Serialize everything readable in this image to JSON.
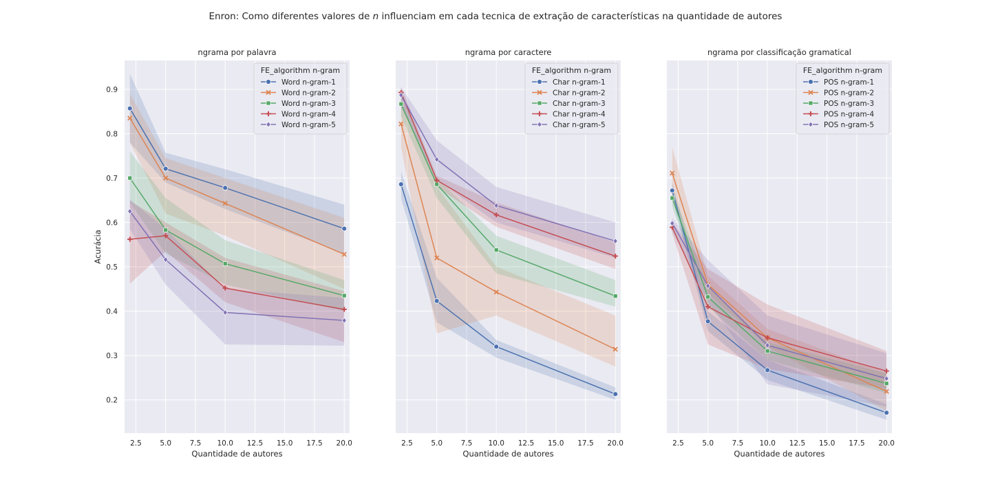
{
  "figure": {
    "suptitle_before": "Enron: Como diferentes valores de ",
    "suptitle_var": "n",
    "suptitle_after": " influenciam em cada tecnica de extração de características na quantidade de autores"
  },
  "colors": {
    "plot_bg": "#eaeaf2",
    "grid": "#ffffff",
    "series": [
      "#4c72b0",
      "#dd8452",
      "#55a868",
      "#c44e52",
      "#8172b3"
    ]
  },
  "chart_data": [
    {
      "type": "line",
      "title": "ngrama por palavra",
      "xlabel": "Quantidade de autores",
      "ylabel": "Acurácia",
      "xlim": [
        1.55,
        20.45
      ],
      "ylim": [
        0.125,
        0.965
      ],
      "x_ticks": [
        2.5,
        5.0,
        7.5,
        10.0,
        12.5,
        15.0,
        17.5,
        20.0
      ],
      "x_tick_labels": [
        "2.5",
        "5.0",
        "7.5",
        "10.0",
        "12.5",
        "15.0",
        "17.5",
        "20.0"
      ],
      "y_ticks": [
        0.2,
        0.3,
        0.4,
        0.5,
        0.6,
        0.7,
        0.8,
        0.9
      ],
      "y_tick_labels": [
        "0.2",
        "0.3",
        "0.4",
        "0.5",
        "0.6",
        "0.7",
        "0.8",
        "0.9"
      ],
      "x": [
        2,
        5,
        10,
        20
      ],
      "legend_title": "FE_algorithm n-gram",
      "legend_position": "upper right",
      "grid": true,
      "series": [
        {
          "name": "Word n-gram-1",
          "marker": "circle",
          "values": [
            0.857,
            0.721,
            0.678,
            0.586
          ],
          "ci_low": [
            0.78,
            0.69,
            0.63,
            0.53
          ],
          "ci_high": [
            0.935,
            0.757,
            0.72,
            0.64
          ]
        },
        {
          "name": "Word n-gram-2",
          "marker": "x",
          "values": [
            0.835,
            0.7,
            0.643,
            0.528
          ],
          "ci_low": [
            0.78,
            0.62,
            0.57,
            0.45
          ],
          "ci_high": [
            0.89,
            0.745,
            0.7,
            0.61
          ]
        },
        {
          "name": "Word n-gram-3",
          "marker": "square",
          "values": [
            0.7,
            0.583,
            0.507,
            0.435
          ],
          "ci_low": [
            0.645,
            0.53,
            0.46,
            0.4
          ],
          "ci_high": [
            0.76,
            0.655,
            0.56,
            0.47
          ]
        },
        {
          "name": "Word n-gram-4",
          "marker": "plus",
          "values": [
            0.562,
            0.57,
            0.452,
            0.404
          ],
          "ci_low": [
            0.462,
            0.535,
            0.42,
            0.33
          ],
          "ci_high": [
            0.648,
            0.6,
            0.52,
            0.445
          ]
        },
        {
          "name": "Word n-gram-5",
          "marker": "diamond",
          "values": [
            0.625,
            0.516,
            0.397,
            0.379
          ],
          "ci_low": [
            0.585,
            0.46,
            0.325,
            0.322
          ],
          "ci_high": [
            0.652,
            0.585,
            0.45,
            0.43
          ]
        }
      ]
    },
    {
      "type": "line",
      "title": "ngrama por caractere",
      "xlabel": "Quantidade de autores",
      "ylabel": "",
      "xlim": [
        1.55,
        20.45
      ],
      "ylim": [
        0.125,
        0.965
      ],
      "x_ticks": [
        2.5,
        5.0,
        7.5,
        10.0,
        12.5,
        15.0,
        17.5,
        20.0
      ],
      "x_tick_labels": [
        "2.5",
        "5.0",
        "7.5",
        "10.0",
        "12.5",
        "15.0",
        "17.5",
        "20.0"
      ],
      "y_ticks": [],
      "y_tick_labels": [],
      "x": [
        2,
        5,
        10,
        20
      ],
      "legend_title": "FE_algorithm n-gram",
      "legend_position": "upper right",
      "grid": true,
      "series": [
        {
          "name": "Char n-gram-1",
          "marker": "circle",
          "values": [
            0.686,
            0.423,
            0.32,
            0.213
          ],
          "ci_low": [
            0.655,
            0.375,
            0.295,
            0.2
          ],
          "ci_high": [
            0.715,
            0.475,
            0.335,
            0.228
          ]
        },
        {
          "name": "Char n-gram-2",
          "marker": "x",
          "values": [
            0.822,
            0.52,
            0.443,
            0.314
          ],
          "ci_low": [
            0.77,
            0.35,
            0.39,
            0.275
          ],
          "ci_high": [
            0.87,
            0.68,
            0.5,
            0.39
          ]
        },
        {
          "name": "Char n-gram-3",
          "marker": "square",
          "values": [
            0.867,
            0.686,
            0.538,
            0.434
          ],
          "ci_low": [
            0.84,
            0.655,
            0.485,
            0.41
          ],
          "ci_high": [
            0.895,
            0.7,
            0.57,
            0.47
          ]
        },
        {
          "name": "Char n-gram-4",
          "marker": "plus",
          "values": [
            0.893,
            0.695,
            0.617,
            0.524
          ],
          "ci_low": [
            0.87,
            0.68,
            0.59,
            0.495
          ],
          "ci_high": [
            0.905,
            0.705,
            0.645,
            0.555
          ]
        },
        {
          "name": "Char n-gram-5",
          "marker": "diamond",
          "values": [
            0.887,
            0.742,
            0.638,
            0.558
          ],
          "ci_low": [
            0.86,
            0.695,
            0.6,
            0.52
          ],
          "ci_high": [
            0.905,
            0.785,
            0.68,
            0.6
          ]
        }
      ]
    },
    {
      "type": "line",
      "title": "ngrama por classificação gramatical",
      "xlabel": "Quantidade de autores",
      "ylabel": "",
      "xlim": [
        1.55,
        20.45
      ],
      "ylim": [
        0.125,
        0.965
      ],
      "x_ticks": [
        2.5,
        5.0,
        7.5,
        10.0,
        12.5,
        15.0,
        17.5,
        20.0
      ],
      "x_tick_labels": [
        "2.5",
        "5.0",
        "7.5",
        "10.0",
        "12.5",
        "15.0",
        "17.5",
        "20.0"
      ],
      "y_ticks": [],
      "y_tick_labels": [],
      "x": [
        2,
        5,
        10,
        20
      ],
      "legend_title": "FE_algorithm n-gram",
      "legend_position": "upper right",
      "grid": true,
      "series": [
        {
          "name": "POS n-gram-1",
          "marker": "circle",
          "values": [
            0.672,
            0.377,
            0.267,
            0.171
          ],
          "ci_low": [
            0.655,
            0.355,
            0.245,
            0.155
          ],
          "ci_high": [
            0.69,
            0.4,
            0.29,
            0.19
          ]
        },
        {
          "name": "POS n-gram-2",
          "marker": "x",
          "values": [
            0.711,
            0.46,
            0.34,
            0.219
          ],
          "ci_low": [
            0.66,
            0.44,
            0.32,
            0.175
          ],
          "ci_high": [
            0.77,
            0.48,
            0.36,
            0.26
          ]
        },
        {
          "name": "POS n-gram-3",
          "marker": "square",
          "values": [
            0.655,
            0.432,
            0.31,
            0.237
          ],
          "ci_low": [
            0.635,
            0.41,
            0.29,
            0.215
          ],
          "ci_high": [
            0.675,
            0.455,
            0.33,
            0.26
          ]
        },
        {
          "name": "POS n-gram-4",
          "marker": "plus",
          "values": [
            0.589,
            0.41,
            0.34,
            0.265
          ],
          "ci_low": [
            0.575,
            0.325,
            0.27,
            0.225
          ],
          "ci_high": [
            0.6,
            0.495,
            0.415,
            0.31
          ]
        },
        {
          "name": "POS n-gram-5",
          "marker": "diamond",
          "values": [
            0.598,
            0.457,
            0.323,
            0.248
          ],
          "ci_low": [
            0.58,
            0.42,
            0.235,
            0.185
          ],
          "ci_high": [
            0.61,
            0.515,
            0.39,
            0.305
          ]
        }
      ]
    }
  ]
}
